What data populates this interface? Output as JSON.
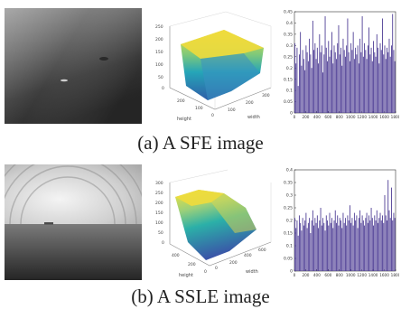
{
  "rows": [
    {
      "caption": "(a) A SFE image",
      "surface": {
        "zticks": [
          "250",
          "200",
          "150",
          "100",
          "50",
          "0"
        ],
        "height_ticks": [
          "0",
          "100",
          "200"
        ],
        "width_ticks": [
          "100",
          "200",
          "300"
        ],
        "xlabel": "height",
        "ylabel": "width"
      }
    },
    {
      "caption": "(b) A SSLE image",
      "surface": {
        "zticks": [
          "300",
          "250",
          "200",
          "150",
          "100",
          "50",
          "0"
        ],
        "height_ticks": [
          "0",
          "200",
          "400"
        ],
        "width_ticks": [
          "0",
          "200",
          "400",
          "600"
        ],
        "xlabel": "height",
        "ylabel": "width"
      }
    }
  ],
  "chart_data": [
    {
      "type": "bar",
      "ylim": [
        0,
        0.45
      ],
      "xlim": [
        0,
        1800
      ],
      "yticks": [
        "0.45",
        "0.4",
        "0.35",
        "0.3",
        "0.25",
        "0.2",
        "0.15",
        "0.1",
        "0.05",
        "0"
      ],
      "xticks": [
        "0",
        "200",
        "400",
        "600",
        "800",
        "1000",
        "1200",
        "1400",
        "1600",
        "1800"
      ],
      "values": [
        0.31,
        0.22,
        0.29,
        0.12,
        0.26,
        0.36,
        0.21,
        0.28,
        0.24,
        0.19,
        0.3,
        0.27,
        0.23,
        0.33,
        0.26,
        0.2,
        0.41,
        0.28,
        0.31,
        0.24,
        0.29,
        0.22,
        0.35,
        0.27,
        0.3,
        0.18,
        0.26,
        0.43,
        0.29,
        0.23,
        0.32,
        0.25,
        0.28,
        0.36,
        0.22,
        0.3,
        0.27,
        0.24,
        0.31,
        0.39,
        0.26,
        0.29,
        0.21,
        0.33,
        0.28,
        0.25,
        0.3,
        0.42,
        0.27,
        0.23,
        0.31,
        0.28,
        0.36,
        0.24,
        0.29,
        0.26,
        0.3,
        0.22,
        0.33,
        0.27,
        0.43,
        0.25,
        0.31,
        0.28,
        0.24,
        0.3,
        0.38,
        0.26,
        0.29,
        0.23,
        0.32,
        0.27,
        0.25,
        0.35,
        0.29,
        0.22,
        0.31,
        0.28,
        0.42,
        0.26,
        0.3,
        0.24,
        0.29,
        0.27,
        0.33,
        0.25,
        0.3,
        0.44,
        0.28,
        0.23
      ]
    },
    {
      "type": "bar",
      "ylim": [
        0,
        0.4
      ],
      "xlim": [
        0,
        1800
      ],
      "yticks": [
        "0.4",
        "0.35",
        "0.3",
        "0.25",
        "0.2",
        "0.15",
        "0.1",
        "0.05",
        "0"
      ],
      "xticks": [
        "0",
        "200",
        "400",
        "600",
        "800",
        "1000",
        "1200",
        "1400",
        "1600",
        "1800"
      ],
      "values": [
        0.21,
        0.17,
        0.2,
        0.14,
        0.22,
        0.19,
        0.16,
        0.21,
        0.18,
        0.2,
        0.23,
        0.17,
        0.19,
        0.21,
        0.15,
        0.2,
        0.24,
        0.18,
        0.21,
        0.19,
        0.22,
        0.17,
        0.2,
        0.25,
        0.18,
        0.21,
        0.19,
        0.16,
        0.22,
        0.2,
        0.18,
        0.23,
        0.19,
        0.21,
        0.17,
        0.2,
        0.24,
        0.19,
        0.22,
        0.18,
        0.21,
        0.2,
        0.17,
        0.23,
        0.19,
        0.21,
        0.18,
        0.22,
        0.2,
        0.26,
        0.19,
        0.21,
        0.18,
        0.23,
        0.2,
        0.22,
        0.17,
        0.21,
        0.24,
        0.19,
        0.22,
        0.2,
        0.18,
        0.21,
        0.23,
        0.19,
        0.22,
        0.2,
        0.25,
        0.21,
        0.18,
        0.22,
        0.2,
        0.24,
        0.19,
        0.21,
        0.23,
        0.2,
        0.22,
        0.19,
        0.3,
        0.22,
        0.2,
        0.36,
        0.24,
        0.21,
        0.33,
        0.2,
        0.23,
        0.21
      ]
    }
  ]
}
